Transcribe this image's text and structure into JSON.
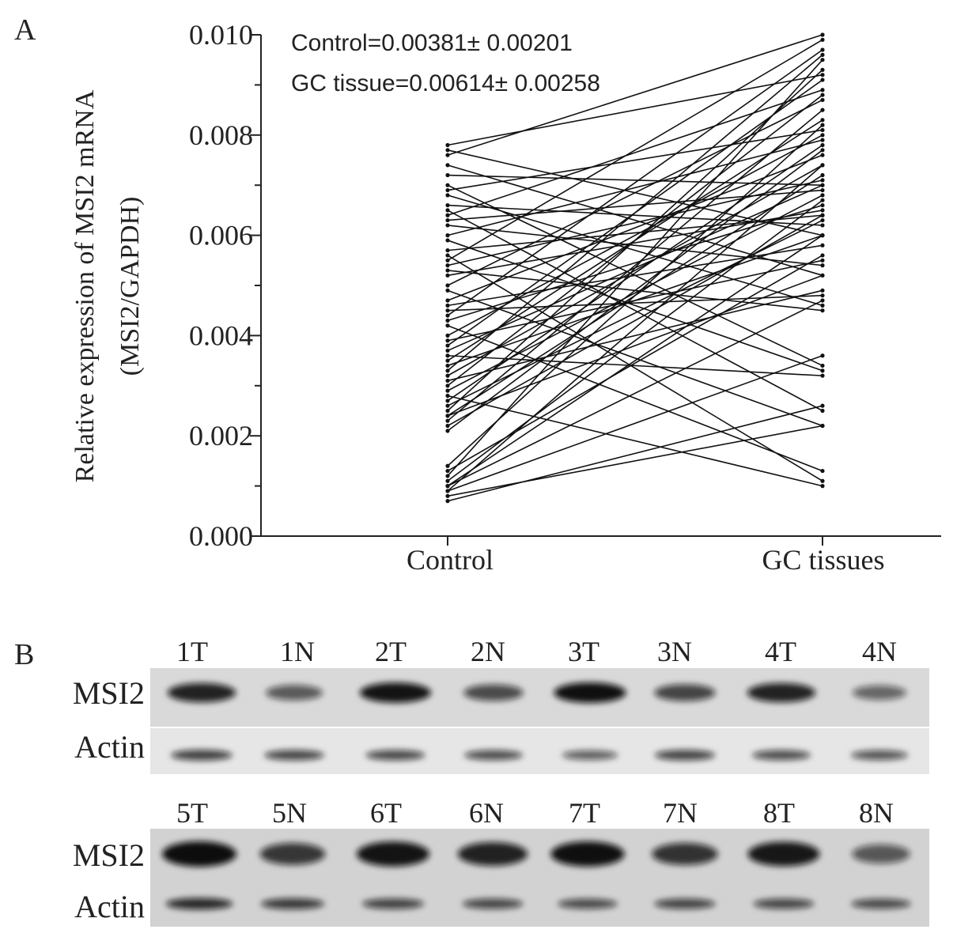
{
  "panel_a_letter": "A",
  "panel_b_letter": "B",
  "chart_data": {
    "type": "line",
    "title": "",
    "ylabel_line1": "Relative expression of MSI2 mRNA",
    "ylabel_line2": "(MSI2/GAPDH)",
    "xlabel": "",
    "categories": [
      "Control",
      "GC tissues"
    ],
    "ylim": [
      0,
      0.01
    ],
    "yticks": [
      "0.000",
      "0.002",
      "0.004",
      "0.006",
      "0.008",
      "0.010"
    ],
    "ytick_values": [
      0,
      0.002,
      0.004,
      0.006,
      0.008,
      0.01
    ],
    "annotations": [
      "Control=0.00381± 0.00201",
      "GC tissue=0.00614± 0.00258"
    ],
    "grid": false,
    "legend": "none",
    "pairs": [
      [
        0.0078,
        0.0092
      ],
      [
        0.0077,
        0.006
      ],
      [
        0.0076,
        0.01
      ],
      [
        0.0074,
        0.0052
      ],
      [
        0.0072,
        0.007
      ],
      [
        0.007,
        0.0034
      ],
      [
        0.0069,
        0.0081
      ],
      [
        0.0068,
        0.0046
      ],
      [
        0.0066,
        0.0062
      ],
      [
        0.0065,
        0.0025
      ],
      [
        0.0064,
        0.0089
      ],
      [
        0.0063,
        0.0069
      ],
      [
        0.0062,
        0.0054
      ],
      [
        0.006,
        0.0079
      ],
      [
        0.0059,
        0.0033
      ],
      [
        0.0057,
        0.0064
      ],
      [
        0.0056,
        0.0011
      ],
      [
        0.0055,
        0.0099
      ],
      [
        0.0054,
        0.0071
      ],
      [
        0.0053,
        0.0045
      ],
      [
        0.0052,
        0.0065
      ],
      [
        0.005,
        0.0087
      ],
      [
        0.0049,
        0.0022
      ],
      [
        0.0047,
        0.0076
      ],
      [
        0.0046,
        0.0058
      ],
      [
        0.0045,
        0.0048
      ],
      [
        0.0044,
        0.0097
      ],
      [
        0.0043,
        0.0066
      ],
      [
        0.0042,
        0.0013
      ],
      [
        0.004,
        0.008
      ],
      [
        0.0039,
        0.0055
      ],
      [
        0.0038,
        0.0091
      ],
      [
        0.0037,
        0.007
      ],
      [
        0.0036,
        0.0032
      ],
      [
        0.0035,
        0.0083
      ],
      [
        0.0034,
        0.006
      ],
      [
        0.0033,
        0.0096
      ],
      [
        0.0032,
        0.0074
      ],
      [
        0.0031,
        0.0049
      ],
      [
        0.003,
        0.0088
      ],
      [
        0.0029,
        0.0068
      ],
      [
        0.0028,
        0.001
      ],
      [
        0.0027,
        0.0078
      ],
      [
        0.0026,
        0.0063
      ],
      [
        0.0025,
        0.0093
      ],
      [
        0.0024,
        0.0072
      ],
      [
        0.0024,
        0.0052
      ],
      [
        0.0023,
        0.0085
      ],
      [
        0.0022,
        0.0064
      ],
      [
        0.0021,
        0.0077
      ],
      [
        0.0014,
        0.0082
      ],
      [
        0.0013,
        0.0056
      ],
      [
        0.0012,
        0.0095
      ],
      [
        0.0011,
        0.0067
      ],
      [
        0.001,
        0.0047
      ],
      [
        0.0009,
        0.0074
      ],
      [
        0.0009,
        0.0036
      ],
      [
        0.0008,
        0.0022
      ],
      [
        0.0007,
        0.0026
      ],
      [
        0.001,
        0.006
      ]
    ]
  },
  "western_blot": {
    "row1": {
      "lanes": [
        "1T",
        "1N",
        "2T",
        "2N",
        "3T",
        "3N",
        "4T",
        "4N"
      ],
      "labels": {
        "msi2": "MSI2",
        "actin": "Actin"
      },
      "msi2_intensity": [
        0.85,
        0.45,
        0.95,
        0.55,
        0.98,
        0.6,
        0.85,
        0.35
      ],
      "actin_intensity": [
        0.65,
        0.6,
        0.58,
        0.55,
        0.45,
        0.62,
        0.55,
        0.5
      ]
    },
    "row2": {
      "lanes": [
        "5T",
        "5N",
        "6T",
        "6N",
        "7T",
        "7N",
        "8T",
        "8N"
      ],
      "labels": {
        "msi2": "MSI2",
        "actin": "Actin"
      },
      "msi2_intensity": [
        1.0,
        0.7,
        0.95,
        0.85,
        0.98,
        0.72,
        0.92,
        0.45
      ],
      "actin_intensity": [
        0.8,
        0.68,
        0.62,
        0.58,
        0.55,
        0.6,
        0.58,
        0.55
      ]
    }
  },
  "colors": {
    "ink": "#222222",
    "blot_background": "#d9d9d9",
    "band": "#111111"
  }
}
